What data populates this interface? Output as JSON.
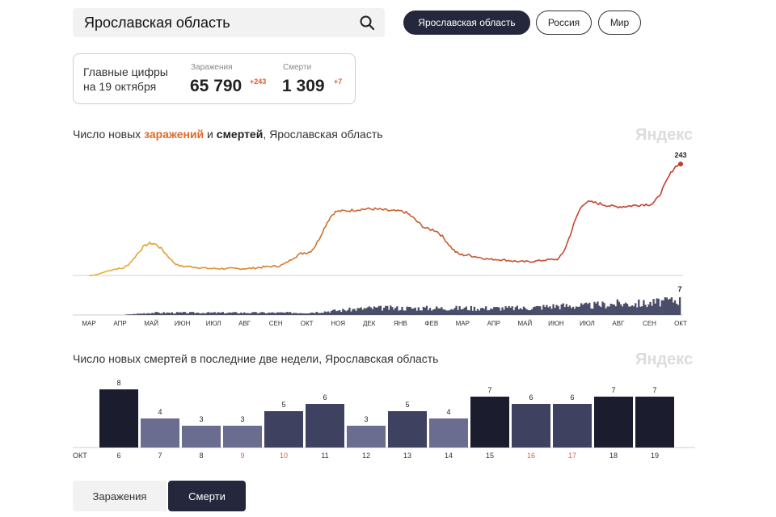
{
  "search": {
    "value": "Ярославская область"
  },
  "regions": [
    {
      "label": "Ярославская область",
      "active": true
    },
    {
      "label": "Россия",
      "active": false
    },
    {
      "label": "Мир",
      "active": false
    }
  ],
  "summary": {
    "caption_line1": "Главные цифры",
    "caption_line2": "на 19 октября",
    "infections": {
      "label": "Заражения",
      "value": "65 790",
      "delta": "+243"
    },
    "deaths": {
      "label": "Смерти",
      "value": "1 309",
      "delta": "+7"
    }
  },
  "chart1": {
    "title_prefix": "Число новых ",
    "title_infections": "заражений",
    "title_and": " и ",
    "title_deaths": "смертей",
    "title_suffix": ", Ярославская область",
    "brand": "Яндекс",
    "last_infections_label": "243",
    "last_deaths_label": "7"
  },
  "chart2": {
    "title": "Число новых смертей в последние две недели, Ярославская область",
    "brand": "Яндекс",
    "month_label": "ОКТ"
  },
  "tabs": {
    "infections": "Заражения",
    "deaths": "Смерти"
  },
  "colors": {
    "dark": "#25283d",
    "bar_dark": "#1b1c2e",
    "bar_mid": "#3e4160",
    "bar_light": "#6a6d90",
    "weekend": "#e05a4a",
    "line_start": "#e8b33a",
    "line_end": "#c43a30"
  },
  "chart_data": [
    {
      "type": "line",
      "title": "Число новых заражений и смертей, Ярославская область",
      "x_tick_labels": [
        "МАР",
        "АПР",
        "МАЙ",
        "ИЮН",
        "ИЮЛ",
        "АВГ",
        "СЕН",
        "ОКТ",
        "НОЯ",
        "ДЕК",
        "ЯНВ",
        "ФЕВ",
        "МАР",
        "АПР",
        "МАЙ",
        "ИЮН",
        "ИЮЛ",
        "АВГ",
        "СЕН",
        "ОКТ"
      ],
      "series": [
        {
          "name": "заражений",
          "approx_monthly_values": [
            0,
            15,
            70,
            20,
            15,
            15,
            20,
            50,
            140,
            145,
            140,
            100,
            45,
            35,
            30,
            35,
            160,
            150,
            155,
            243
          ],
          "last_value": 243
        },
        {
          "name": "смертей",
          "approx_monthly_values": [
            0,
            0,
            1,
            1,
            1,
            1,
            1,
            1,
            2,
            3,
            3,
            3,
            3,
            3,
            3,
            4,
            4,
            5,
            5,
            7
          ],
          "last_value": 7
        }
      ]
    },
    {
      "type": "bar",
      "title": "Число новых смертей в последние две недели, Ярославская область",
      "categories": [
        "6",
        "7",
        "8",
        "9",
        "10",
        "11",
        "12",
        "13",
        "14",
        "15",
        "16",
        "17",
        "18",
        "19"
      ],
      "weekend_categories": [
        "9",
        "10",
        "16",
        "17"
      ],
      "values": [
        8,
        4,
        3,
        3,
        5,
        6,
        3,
        5,
        4,
        7,
        6,
        6,
        7,
        7
      ],
      "ylim": [
        0,
        8
      ]
    }
  ]
}
